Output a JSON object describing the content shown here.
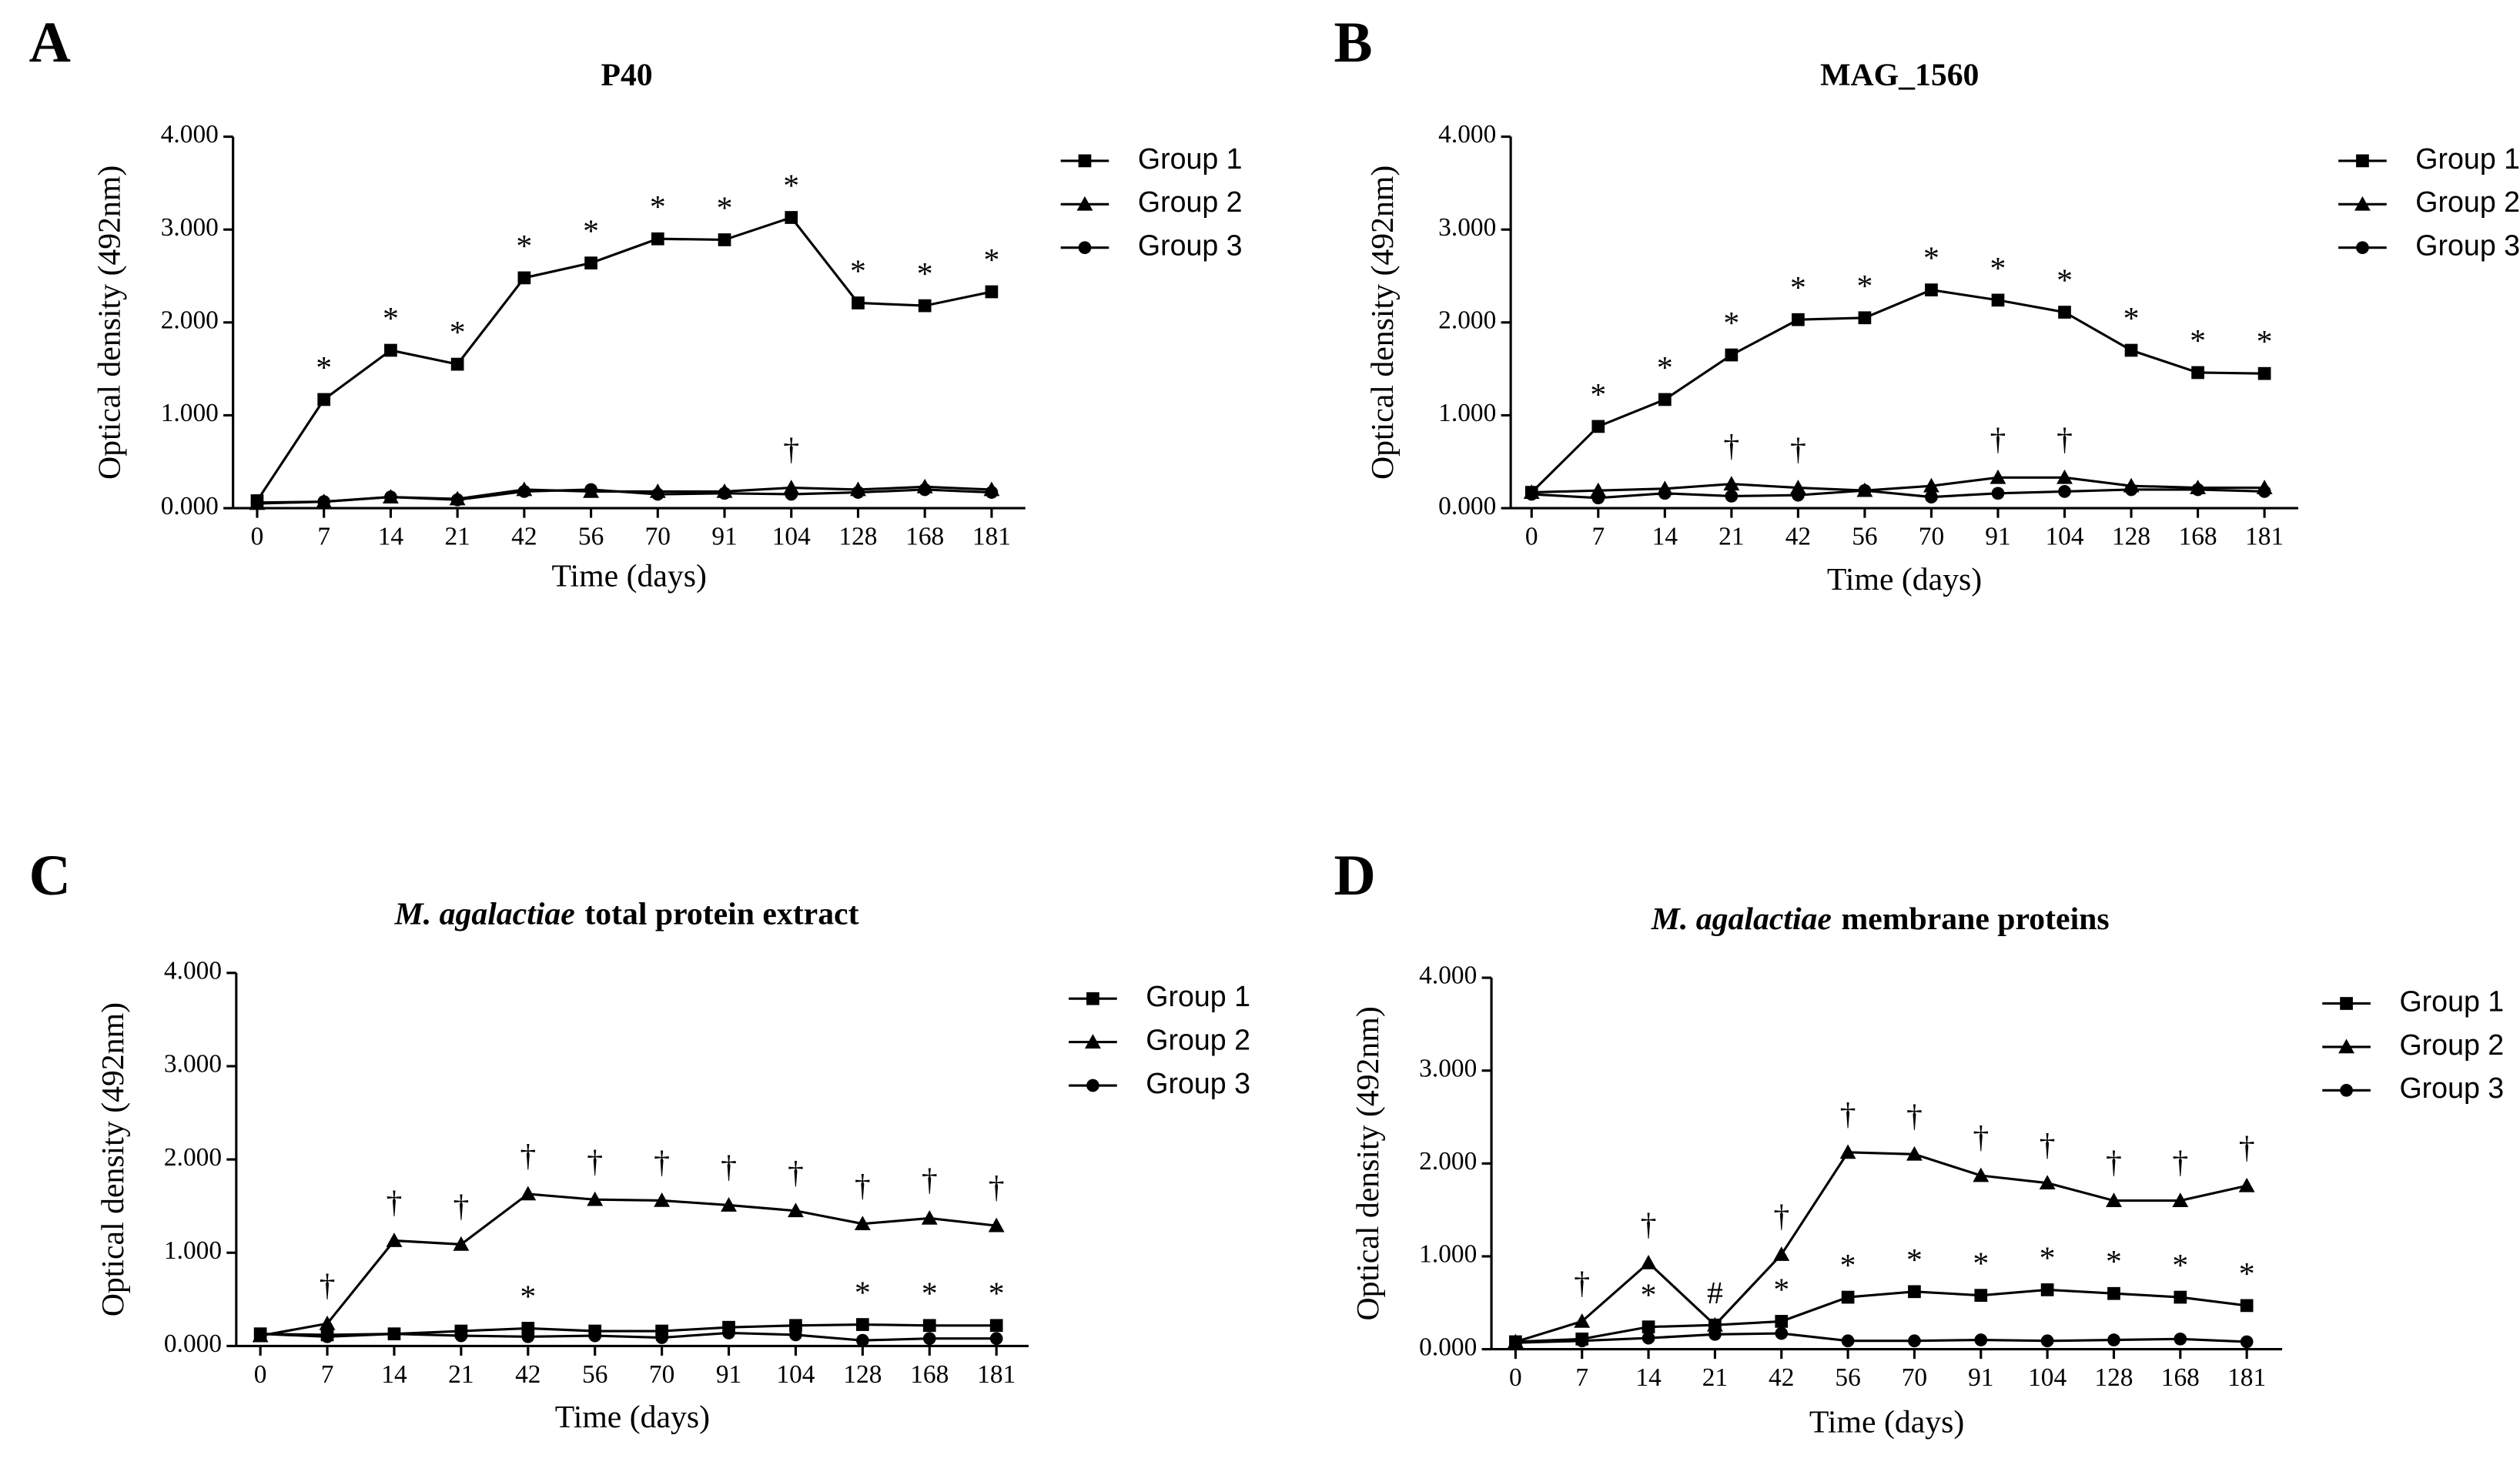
{
  "chart_data": [
    {
      "type": "line",
      "panel": "A",
      "title": "P40",
      "x_label": "Time (days)",
      "y_label": "Optical density (492nm)",
      "categories": [
        0,
        7,
        14,
        21,
        42,
        56,
        70,
        91,
        104,
        128,
        168,
        181
      ],
      "ylim": [
        0,
        4
      ],
      "yticks": [
        {
          "value": 0,
          "label": "0.000"
        },
        {
          "value": 1,
          "label": "1.000"
        },
        {
          "value": 2,
          "label": "2.000"
        },
        {
          "value": 3,
          "label": "3.000"
        },
        {
          "value": 4,
          "label": "4.000"
        }
      ],
      "series": [
        {
          "name": "Group 1",
          "color": "#000000",
          "marker": "square",
          "values": [
            0.08,
            1.17,
            1.7,
            1.55,
            2.48,
            2.64,
            2.9,
            2.89,
            3.13,
            2.21,
            2.18,
            2.33
          ]
        },
        {
          "name": "Group 2",
          "color": "#000000",
          "marker": "triangle",
          "values": [
            0.05,
            0.07,
            0.12,
            0.1,
            0.2,
            0.18,
            0.18,
            0.18,
            0.22,
            0.2,
            0.23,
            0.2
          ]
        },
        {
          "name": "Group 3",
          "color": "#000000",
          "marker": "circle",
          "values": [
            0.06,
            0.07,
            0.12,
            0.09,
            0.18,
            0.2,
            0.15,
            0.16,
            0.15,
            0.17,
            0.2,
            0.17
          ]
        }
      ],
      "annotations": [
        {
          "x": 7,
          "text": "*",
          "above": "Group 1"
        },
        {
          "x": 14,
          "text": "*",
          "above": "Group 1"
        },
        {
          "x": 21,
          "text": "*",
          "above": "Group 1"
        },
        {
          "x": 42,
          "text": "*",
          "above": "Group 1"
        },
        {
          "x": 56,
          "text": "*",
          "above": "Group 1"
        },
        {
          "x": 70,
          "text": "*",
          "above": "Group 1"
        },
        {
          "x": 91,
          "text": "*",
          "above": "Group 1"
        },
        {
          "x": 104,
          "text": "*",
          "above": "Group 1"
        },
        {
          "x": 128,
          "text": "*",
          "above": "Group 1"
        },
        {
          "x": 168,
          "text": "*",
          "above": "Group 1"
        },
        {
          "x": 181,
          "text": "*",
          "above": "Group 1"
        },
        {
          "x": 104,
          "text": "†",
          "above": "Group 2"
        }
      ]
    },
    {
      "type": "line",
      "panel": "B",
      "title": "MAG_1560",
      "x_label": "Time (days)",
      "y_label": "Optical density (492nm)",
      "categories": [
        0,
        7,
        14,
        21,
        42,
        56,
        70,
        91,
        104,
        128,
        168,
        181
      ],
      "ylim": [
        0,
        4
      ],
      "yticks": [
        {
          "value": 0,
          "label": "0.000"
        },
        {
          "value": 1,
          "label": "1.000"
        },
        {
          "value": 2,
          "label": "2.000"
        },
        {
          "value": 3,
          "label": "3.000"
        },
        {
          "value": 4,
          "label": "4.000"
        }
      ],
      "series": [
        {
          "name": "Group 1",
          "color": "#000000",
          "marker": "square",
          "values": [
            0.17,
            0.88,
            1.17,
            1.65,
            2.03,
            2.05,
            2.35,
            2.24,
            2.11,
            1.7,
            1.46,
            1.45
          ]
        },
        {
          "name": "Group 2",
          "color": "#000000",
          "marker": "triangle",
          "values": [
            0.17,
            0.19,
            0.21,
            0.26,
            0.22,
            0.19,
            0.24,
            0.33,
            0.33,
            0.24,
            0.22,
            0.22
          ]
        },
        {
          "name": "Group 3",
          "color": "#000000",
          "marker": "circle",
          "values": [
            0.15,
            0.11,
            0.16,
            0.13,
            0.14,
            0.19,
            0.12,
            0.16,
            0.18,
            0.2,
            0.2,
            0.18
          ]
        }
      ],
      "annotations": [
        {
          "x": 7,
          "text": "*",
          "above": "Group 1"
        },
        {
          "x": 14,
          "text": "*",
          "above": "Group 1"
        },
        {
          "x": 21,
          "text": "*",
          "above": "Group 1"
        },
        {
          "x": 42,
          "text": "*",
          "above": "Group 1"
        },
        {
          "x": 56,
          "text": "*",
          "above": "Group 1"
        },
        {
          "x": 70,
          "text": "*",
          "above": "Group 1"
        },
        {
          "x": 91,
          "text": "*",
          "above": "Group 1"
        },
        {
          "x": 104,
          "text": "*",
          "above": "Group 1"
        },
        {
          "x": 128,
          "text": "*",
          "above": "Group 1"
        },
        {
          "x": 168,
          "text": "*",
          "above": "Group 1"
        },
        {
          "x": 181,
          "text": "*",
          "above": "Group 1"
        },
        {
          "x": 21,
          "text": "†",
          "above": "Group 2"
        },
        {
          "x": 42,
          "text": "†",
          "above": "Group 2"
        },
        {
          "x": 91,
          "text": "†",
          "above": "Group 2"
        },
        {
          "x": 104,
          "text": "†",
          "above": "Group 2"
        }
      ]
    },
    {
      "type": "line",
      "panel": "C",
      "title_italic": "M. agalactiae",
      "title": "total protein extract",
      "x_label": "Time (days)",
      "y_label": "Optical density (492nm)",
      "categories": [
        0,
        7,
        14,
        21,
        42,
        56,
        70,
        91,
        104,
        128,
        168,
        181
      ],
      "ylim": [
        0,
        4
      ],
      "yticks": [
        {
          "value": 0,
          "label": "0.000"
        },
        {
          "value": 1,
          "label": "1.000"
        },
        {
          "value": 2,
          "label": "2.000"
        },
        {
          "value": 3,
          "label": "3.000"
        },
        {
          "value": 4,
          "label": "4.000"
        }
      ],
      "series": [
        {
          "name": "Group 1",
          "color": "#000000",
          "marker": "square",
          "values": [
            0.13,
            0.12,
            0.13,
            0.16,
            0.19,
            0.16,
            0.16,
            0.2,
            0.22,
            0.23,
            0.22,
            0.22
          ]
        },
        {
          "name": "Group 2",
          "color": "#000000",
          "marker": "triangle",
          "values": [
            0.11,
            0.24,
            1.13,
            1.09,
            1.63,
            1.57,
            1.56,
            1.51,
            1.45,
            1.31,
            1.37,
            1.29
          ]
        },
        {
          "name": "Group 3",
          "color": "#000000",
          "marker": "circle",
          "values": [
            0.13,
            0.1,
            0.13,
            0.11,
            0.1,
            0.11,
            0.09,
            0.14,
            0.12,
            0.06,
            0.08,
            0.08
          ]
        }
      ],
      "annotations": [
        {
          "x": 7,
          "text": "†",
          "above": "Group 2"
        },
        {
          "x": 14,
          "text": "†",
          "above": "Group 2"
        },
        {
          "x": 21,
          "text": "†",
          "above": "Group 2"
        },
        {
          "x": 42,
          "text": "†",
          "above": "Group 2"
        },
        {
          "x": 56,
          "text": "†",
          "above": "Group 2"
        },
        {
          "x": 70,
          "text": "†",
          "above": "Group 2"
        },
        {
          "x": 91,
          "text": "†",
          "above": "Group 2"
        },
        {
          "x": 104,
          "text": "†",
          "above": "Group 2"
        },
        {
          "x": 128,
          "text": "†",
          "above": "Group 2"
        },
        {
          "x": 168,
          "text": "†",
          "above": "Group 2"
        },
        {
          "x": 181,
          "text": "†",
          "above": "Group 2"
        },
        {
          "x": 42,
          "text": "*",
          "above": "Group 1"
        },
        {
          "x": 128,
          "text": "*",
          "above": "Group 1"
        },
        {
          "x": 168,
          "text": "*",
          "above": "Group 1"
        },
        {
          "x": 181,
          "text": "*",
          "above": "Group 1"
        }
      ]
    },
    {
      "type": "line",
      "panel": "D",
      "title_italic": "M. agalactiae",
      "title": "membrane proteins",
      "x_label": "Time (days)",
      "y_label": "Optical density (492nm)",
      "categories": [
        0,
        7,
        14,
        21,
        42,
        56,
        70,
        91,
        104,
        128,
        168,
        181
      ],
      "ylim": [
        0,
        4
      ],
      "yticks": [
        {
          "value": 0,
          "label": "0.000"
        },
        {
          "value": 1,
          "label": "1.000"
        },
        {
          "value": 2,
          "label": "2.000"
        },
        {
          "value": 3,
          "label": "3.000"
        },
        {
          "value": 4,
          "label": "4.000"
        }
      ],
      "series": [
        {
          "name": "Group 1",
          "color": "#000000",
          "marker": "square",
          "values": [
            0.08,
            0.11,
            0.24,
            0.26,
            0.3,
            0.56,
            0.62,
            0.58,
            0.64,
            0.6,
            0.56,
            0.47
          ]
        },
        {
          "name": "Group 2",
          "color": "#000000",
          "marker": "triangle",
          "values": [
            0.08,
            0.3,
            0.93,
            0.26,
            1.02,
            2.12,
            2.1,
            1.87,
            1.79,
            1.6,
            1.6,
            1.76
          ]
        },
        {
          "name": "Group 3",
          "color": "#000000",
          "marker": "circle",
          "values": [
            0.07,
            0.09,
            0.12,
            0.16,
            0.17,
            0.09,
            0.09,
            0.1,
            0.09,
            0.1,
            0.11,
            0.08
          ]
        }
      ],
      "annotations": [
        {
          "x": 7,
          "text": "†",
          "above": "Group 2"
        },
        {
          "x": 14,
          "text": "†",
          "above": "Group 2"
        },
        {
          "x": 42,
          "text": "†",
          "above": "Group 2"
        },
        {
          "x": 56,
          "text": "†",
          "above": "Group 2"
        },
        {
          "x": 70,
          "text": "†",
          "above": "Group 2"
        },
        {
          "x": 91,
          "text": "†",
          "above": "Group 2"
        },
        {
          "x": 104,
          "text": "†",
          "above": "Group 2"
        },
        {
          "x": 128,
          "text": "†",
          "above": "Group 2"
        },
        {
          "x": 168,
          "text": "†",
          "above": "Group 2"
        },
        {
          "x": 181,
          "text": "†",
          "above": "Group 2"
        },
        {
          "x": 14,
          "text": "*",
          "above": "Group 1"
        },
        {
          "x": 42,
          "text": "*",
          "above": "Group 1"
        },
        {
          "x": 56,
          "text": "*",
          "above": "Group 1"
        },
        {
          "x": 70,
          "text": "*",
          "above": "Group 1"
        },
        {
          "x": 91,
          "text": "*",
          "above": "Group 1"
        },
        {
          "x": 104,
          "text": "*",
          "above": "Group 1"
        },
        {
          "x": 128,
          "text": "*",
          "above": "Group 1"
        },
        {
          "x": 168,
          "text": "*",
          "above": "Group 1"
        },
        {
          "x": 181,
          "text": "*",
          "above": "Group 1"
        },
        {
          "x": 21,
          "text": "#",
          "above": "Group 1"
        }
      ]
    }
  ]
}
